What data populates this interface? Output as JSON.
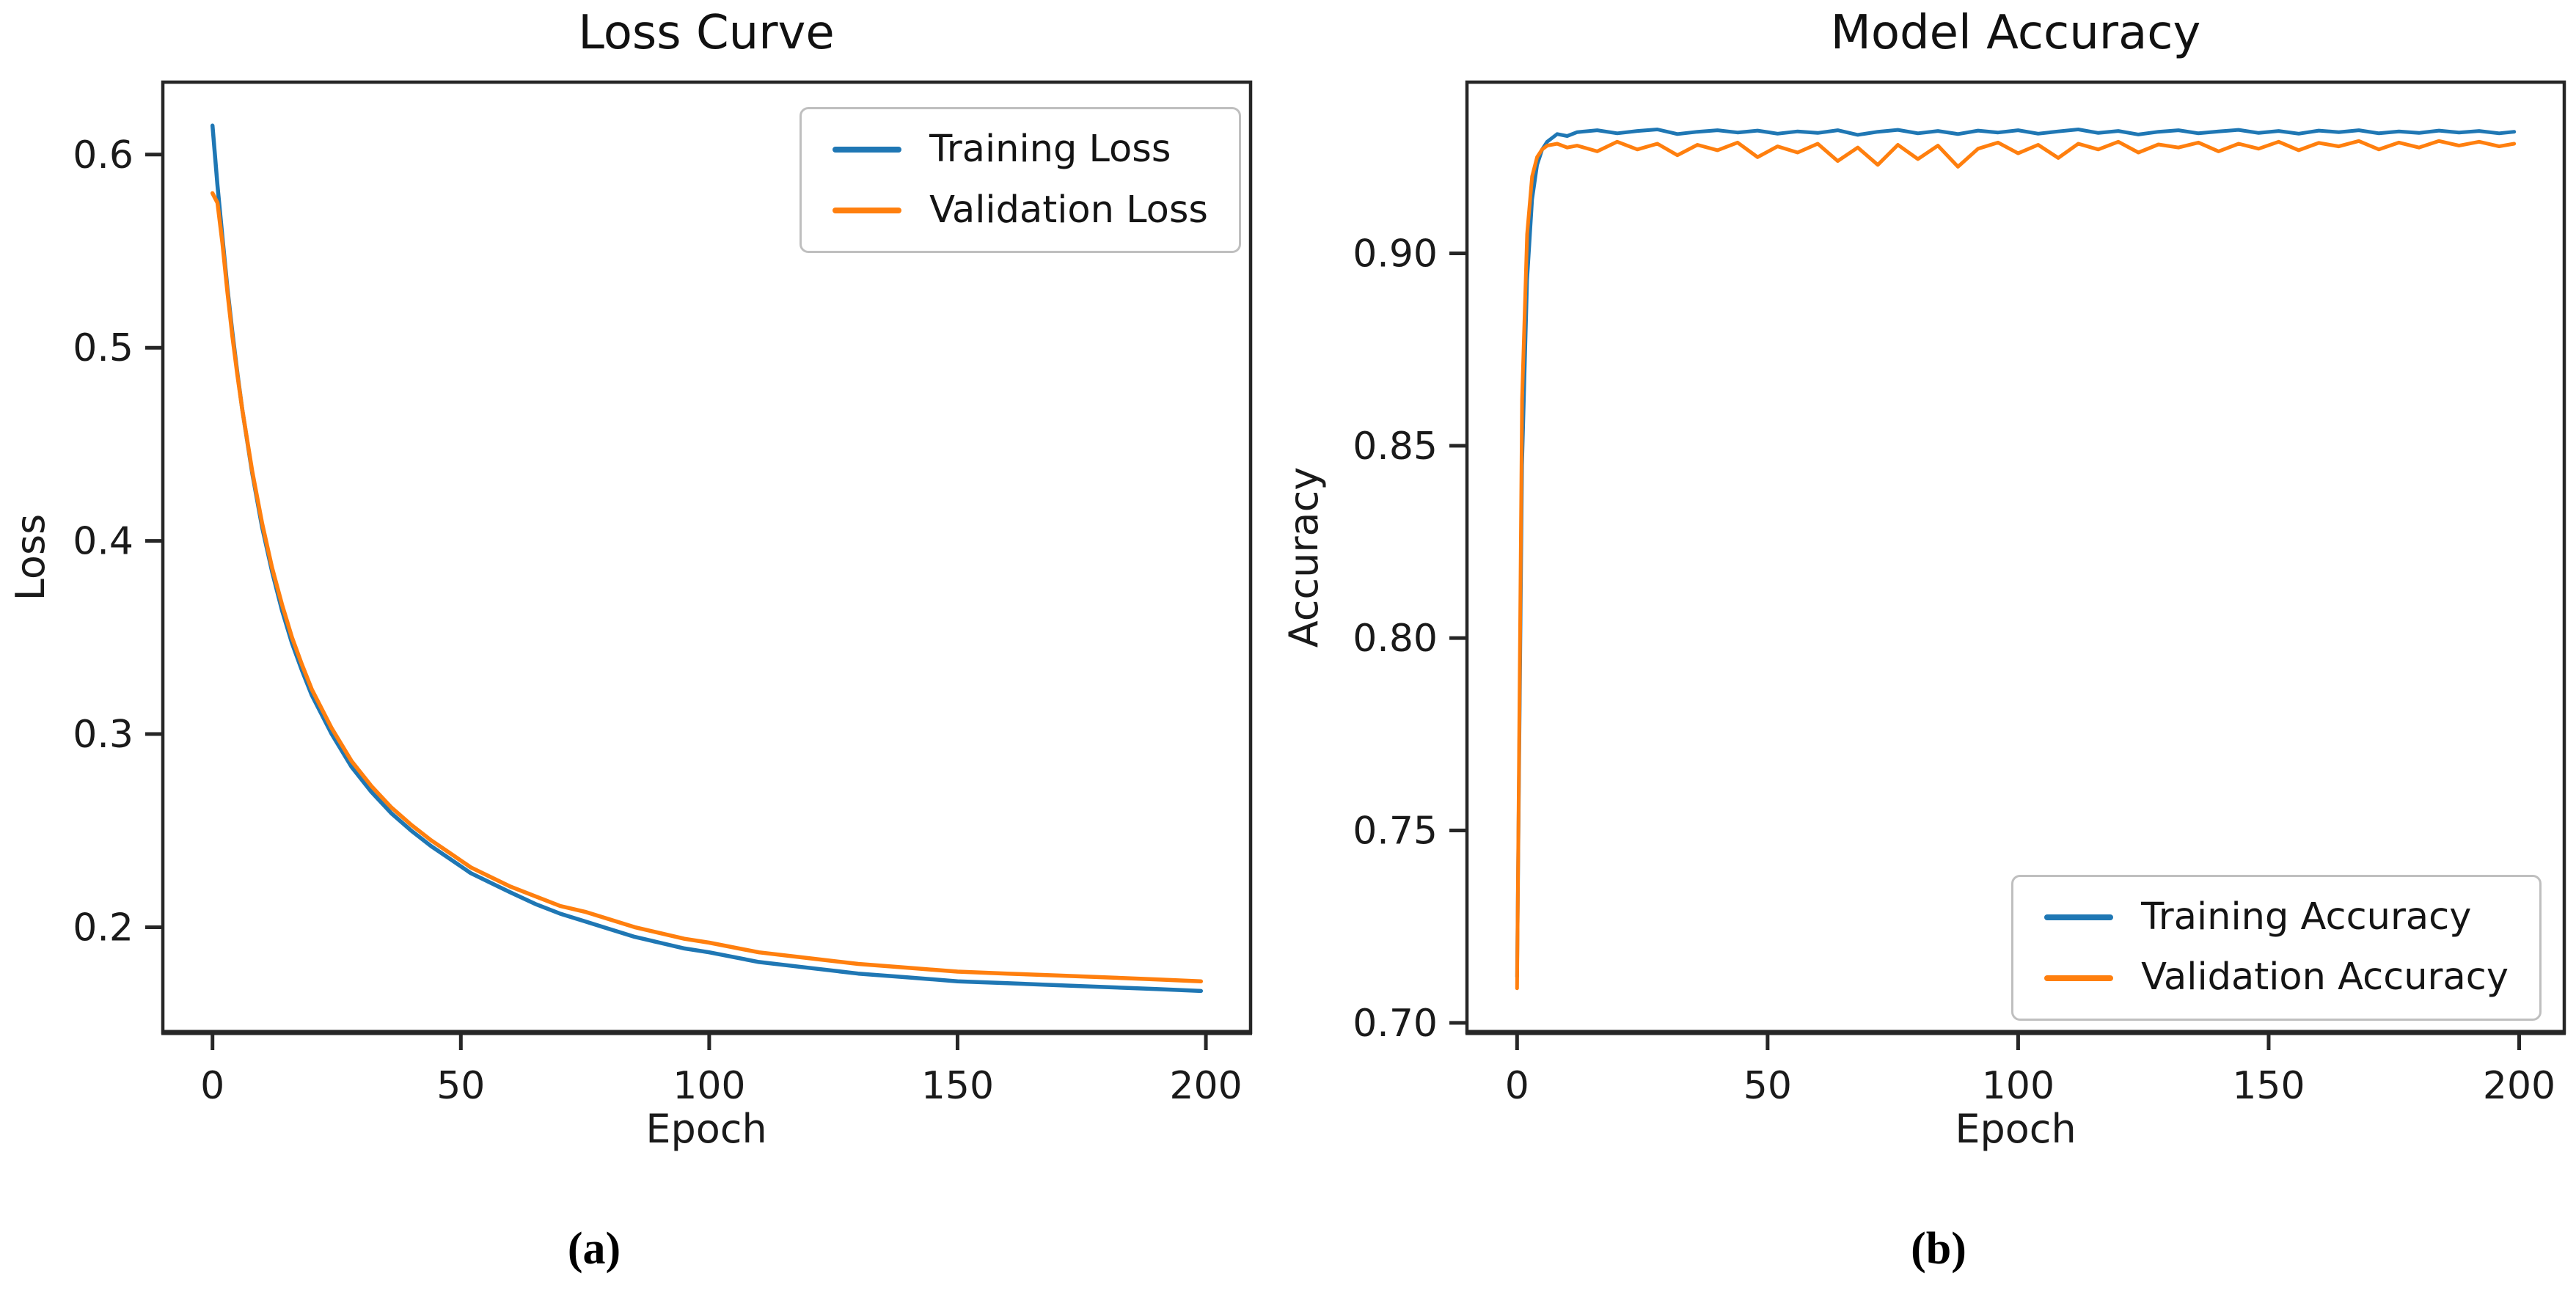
{
  "figure_title": "Training curves figure",
  "accent_colors": {
    "train": "#1f77b4",
    "validation": "#ff7f0e",
    "axis": "#262626",
    "text": "#1a1a1a"
  },
  "chart_data": [
    {
      "type": "line",
      "title": "Loss Curve",
      "xlabel": "Epoch",
      "ylabel": "Loss",
      "caption": "(a)",
      "legend_position": "top-right",
      "grid": false,
      "xlim": [
        -10,
        209
      ],
      "ylim": [
        0.1455,
        0.6375
      ],
      "x_tick_values": [
        0,
        50,
        100,
        150,
        200
      ],
      "x_tick_labels": [
        "0",
        "50",
        "100",
        "150",
        "200"
      ],
      "y_tick_values": [
        0.2,
        0.3,
        0.4,
        0.5,
        0.6
      ],
      "y_tick_labels": [
        "0.2",
        "0.3",
        "0.4",
        "0.5",
        "0.6"
      ],
      "x": [
        0,
        1,
        2,
        3,
        4,
        5,
        6,
        8,
        10,
        12,
        14,
        16,
        18,
        20,
        24,
        28,
        32,
        36,
        40,
        44,
        48,
        52,
        56,
        60,
        65,
        70,
        75,
        80,
        85,
        90,
        95,
        100,
        110,
        120,
        130,
        140,
        150,
        160,
        170,
        180,
        190,
        199
      ],
      "series": [
        {
          "name": "Training Loss",
          "color": "#1f77b4",
          "y": [
            0.615,
            0.584,
            0.557,
            0.531,
            0.508,
            0.487,
            0.468,
            0.435,
            0.407,
            0.384,
            0.364,
            0.347,
            0.333,
            0.32,
            0.3,
            0.283,
            0.27,
            0.259,
            0.25,
            0.242,
            0.235,
            0.228,
            0.223,
            0.218,
            0.212,
            0.207,
            0.203,
            0.199,
            0.195,
            0.192,
            0.189,
            0.187,
            0.182,
            0.179,
            0.176,
            0.174,
            0.172,
            0.171,
            0.17,
            0.169,
            0.168,
            0.167
          ]
        },
        {
          "name": "Validation Loss",
          "color": "#ff7f0e",
          "y": [
            0.58,
            0.575,
            0.554,
            0.529,
            0.506,
            0.486,
            0.468,
            0.436,
            0.409,
            0.386,
            0.367,
            0.35,
            0.336,
            0.323,
            0.303,
            0.286,
            0.273,
            0.262,
            0.253,
            0.245,
            0.238,
            0.231,
            0.226,
            0.221,
            0.216,
            0.211,
            0.208,
            0.204,
            0.2,
            0.197,
            0.194,
            0.192,
            0.187,
            0.184,
            0.181,
            0.179,
            0.177,
            0.176,
            0.175,
            0.174,
            0.173,
            0.172
          ]
        }
      ]
    },
    {
      "type": "line",
      "title": "Model Accuracy",
      "xlabel": "Epoch",
      "ylabel": "Accuracy",
      "caption": "(b)",
      "legend_position": "bottom-right",
      "grid": false,
      "xlim": [
        -10,
        209
      ],
      "ylim": [
        0.6975,
        0.9445
      ],
      "x_tick_values": [
        0,
        50,
        100,
        150,
        200
      ],
      "x_tick_labels": [
        "0",
        "50",
        "100",
        "150",
        "200"
      ],
      "y_tick_values": [
        0.7,
        0.75,
        0.8,
        0.85,
        0.9
      ],
      "y_tick_labels": [
        "0.70",
        "0.75",
        "0.80",
        "0.85",
        "0.90"
      ],
      "x": [
        0,
        1,
        2,
        3,
        4,
        5,
        6,
        8,
        10,
        12,
        16,
        20,
        24,
        28,
        32,
        36,
        40,
        44,
        48,
        52,
        56,
        60,
        64,
        68,
        72,
        76,
        80,
        84,
        88,
        92,
        96,
        100,
        104,
        108,
        112,
        116,
        120,
        124,
        128,
        132,
        136,
        140,
        144,
        148,
        152,
        156,
        160,
        164,
        168,
        172,
        176,
        180,
        184,
        188,
        192,
        196,
        199
      ],
      "series": [
        {
          "name": "Training Accuracy",
          "color": "#1f77b4",
          "y": [
            0.712,
            0.845,
            0.893,
            0.914,
            0.923,
            0.927,
            0.929,
            0.931,
            0.9305,
            0.9315,
            0.932,
            0.9312,
            0.9318,
            0.9322,
            0.931,
            0.9316,
            0.932,
            0.9314,
            0.9319,
            0.9311,
            0.9317,
            0.9313,
            0.932,
            0.9308,
            0.9316,
            0.9321,
            0.9312,
            0.9318,
            0.931,
            0.9319,
            0.9314,
            0.932,
            0.9311,
            0.9317,
            0.9322,
            0.9313,
            0.9318,
            0.9309,
            0.9316,
            0.932,
            0.9312,
            0.9317,
            0.9321,
            0.9313,
            0.9318,
            0.9311,
            0.9319,
            0.9315,
            0.932,
            0.9312,
            0.9317,
            0.9313,
            0.9319,
            0.9314,
            0.9318,
            0.9312,
            0.9316
          ]
        },
        {
          "name": "Validation Accuracy",
          "color": "#ff7f0e",
          "y": [
            0.709,
            0.862,
            0.905,
            0.92,
            0.925,
            0.927,
            0.928,
            0.9285,
            0.9275,
            0.928,
            0.9265,
            0.929,
            0.927,
            0.9285,
            0.9255,
            0.9282,
            0.9268,
            0.9288,
            0.925,
            0.9278,
            0.9262,
            0.9285,
            0.924,
            0.9275,
            0.923,
            0.9282,
            0.9245,
            0.928,
            0.9225,
            0.9272,
            0.9288,
            0.926,
            0.9282,
            0.9248,
            0.9285,
            0.927,
            0.929,
            0.9262,
            0.9283,
            0.9275,
            0.9288,
            0.9265,
            0.9285,
            0.9272,
            0.929,
            0.9268,
            0.9287,
            0.9278,
            0.9292,
            0.927,
            0.9288,
            0.9275,
            0.9292,
            0.928,
            0.929,
            0.9278,
            0.9285
          ]
        }
      ]
    }
  ]
}
